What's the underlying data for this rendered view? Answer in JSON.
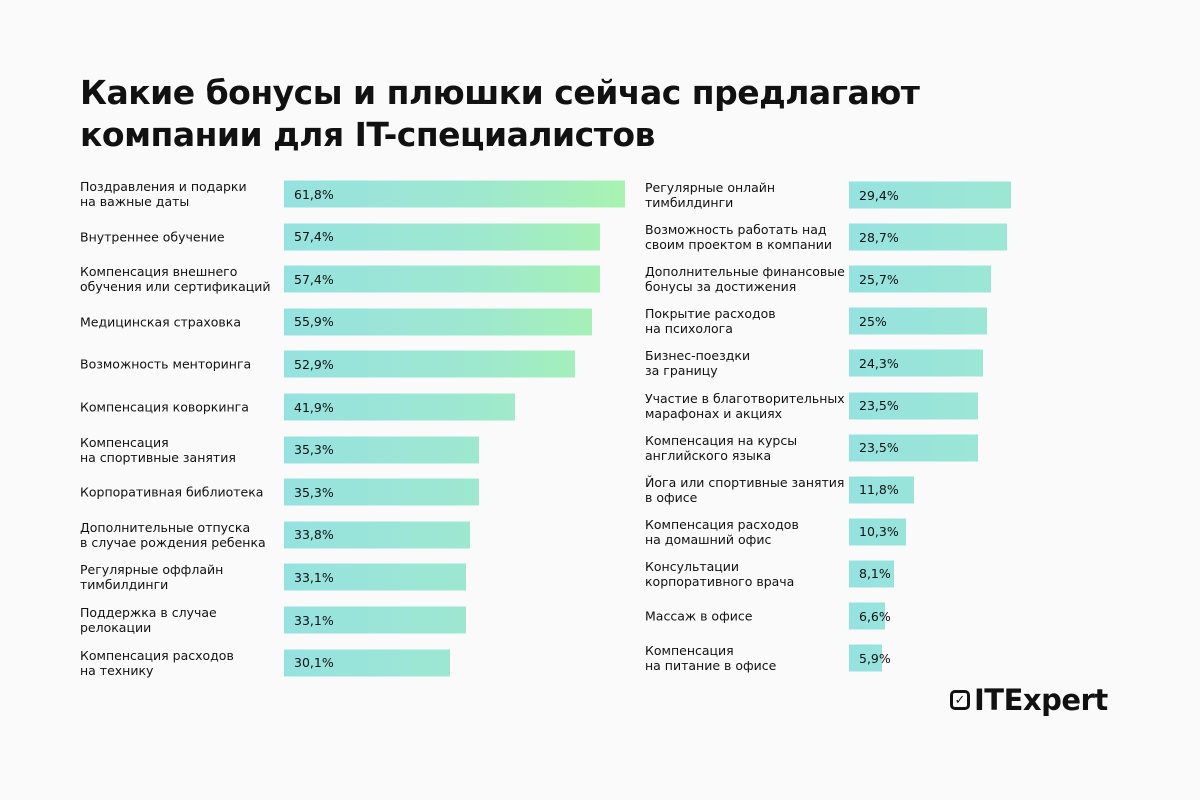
{
  "title": "Какие бонусы и плюшки сейчас предлагают компании для IT-специалистов",
  "logo": "ITExpert",
  "colors": {
    "bar_start": "#96e2e0",
    "bar_end": "#a8f3b0",
    "background": "#fafafa"
  },
  "chart_data": [
    {
      "type": "bar",
      "orientation": "horizontal",
      "categories": [
        "Поздравления и подарки\nна важные даты",
        "Внутреннее обучение",
        "Компенсация внешнего\nобучения или сертификаций",
        "Медицинская страховка",
        "Возможность менторинга",
        "Компенсация коворкинга",
        "Компенсация\nна спортивные занятия",
        "Корпоративная библиотека",
        "Дополнительные отпуска\nв случае рождения ребенка",
        "Регулярные оффлайн\nтимбилдинги",
        "Поддержка в случае\nрелокации",
        "Компенсация расходов\nна технику"
      ],
      "values": [
        61.8,
        57.4,
        57.4,
        55.9,
        52.9,
        41.9,
        35.3,
        35.3,
        33.8,
        33.1,
        33.1,
        30.1
      ],
      "labels": [
        "61,8%",
        "57,4%",
        "57,4%",
        "55,9%",
        "52,9%",
        "41,9%",
        "35,3%",
        "35,3%",
        "33,8%",
        "33,1%",
        "33,1%",
        "30,1%"
      ]
    },
    {
      "type": "bar",
      "orientation": "horizontal",
      "categories": [
        "Регулярные онлайн\nтимбилдинги",
        "Возможность работать над\nсвоим проектом в компании",
        "Дополнительные финансовые\nбонусы за достижения",
        "Покрытие расходов\nна психолога",
        "Бизнес-поездки\nза границу",
        "Участие в благотворительных\nмарафонах и акциях",
        "Компенсация на курсы\nанглийского языка",
        "Йога или спортивные занятия\nв офисе",
        "Компенсация расходов\nна домашний офис",
        "Консультации\nкорпоративного врача",
        "Массаж в офисе",
        "Компенсация\nна питание в офисе"
      ],
      "values": [
        29.4,
        28.7,
        25.7,
        25,
        24.3,
        23.5,
        23.5,
        11.8,
        10.3,
        8.1,
        6.6,
        5.9
      ],
      "labels": [
        "29,4%",
        "28,7%",
        "25,7%",
        "25%",
        "24,3%",
        "23,5%",
        "23,5%",
        "11,8%",
        "10,3%",
        "8,1%",
        "6,6%",
        "5,9%"
      ]
    }
  ]
}
